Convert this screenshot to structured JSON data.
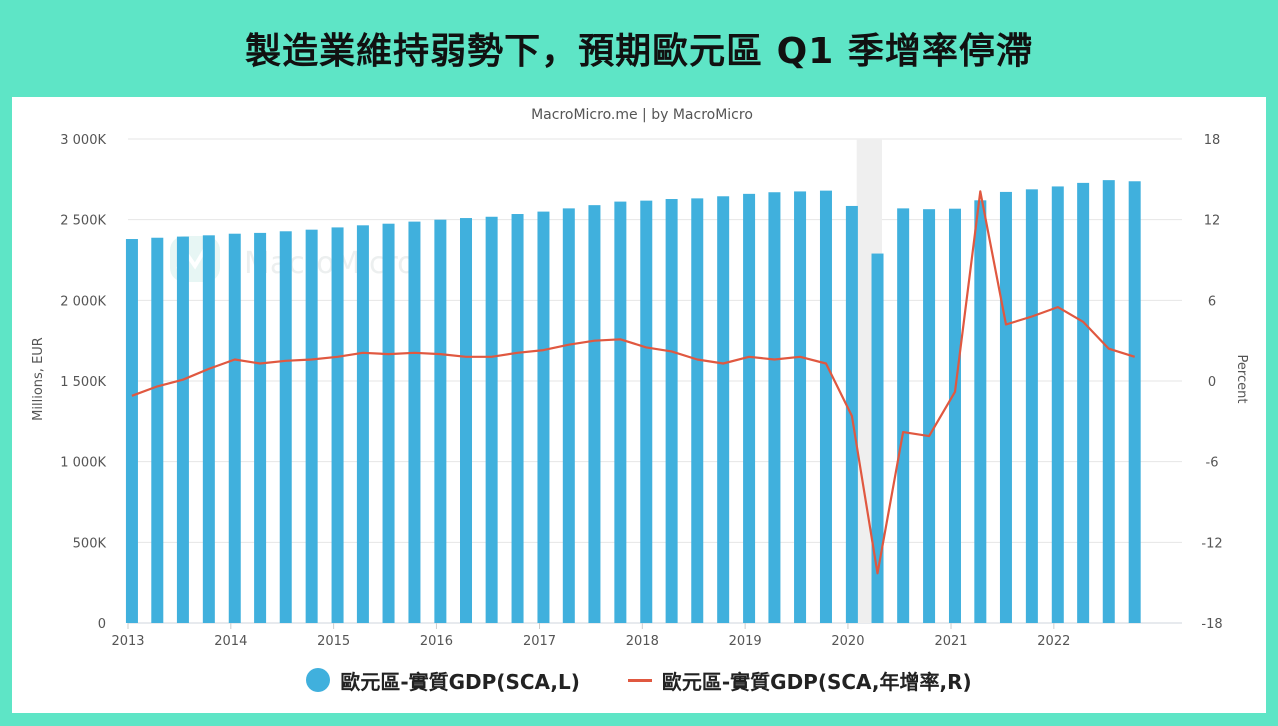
{
  "page": {
    "title": "製造業維持弱勢下，預期歐元區 Q1 季增率停滯"
  },
  "chart_data": {
    "type": "bar",
    "subtitle": "MacroMicro.me | by MacroMicro",
    "watermark": "MacroMicro",
    "left_axis": {
      "label": "Millions, EUR",
      "range": [
        0,
        3000000
      ],
      "ticks": [
        0,
        500000,
        1000000,
        1500000,
        2000000,
        2500000,
        3000000
      ],
      "tick_labels": [
        "0",
        "500K",
        "1 000K",
        "1 500K",
        "2 000K",
        "2 500K",
        "3 000K"
      ]
    },
    "right_axis": {
      "label": "Percent",
      "range": [
        -18,
        18
      ],
      "ticks": [
        -18,
        -12,
        -6,
        0,
        6,
        12,
        18
      ],
      "tick_labels": [
        "-18",
        "-12",
        "-6",
        "0",
        "6",
        "12",
        "18"
      ]
    },
    "x_axis": {
      "range": [
        "2013-01-01",
        "2023-04-01"
      ],
      "tick_labels": [
        "2013",
        "2014",
        "2015",
        "2016",
        "2017",
        "2018",
        "2019",
        "2020",
        "2021",
        "2022"
      ]
    },
    "grid": true,
    "highlight_period": [
      "2020-02-01",
      "2020-05-01"
    ],
    "categories": [
      "2013Q1",
      "2013Q2",
      "2013Q3",
      "2013Q4",
      "2014Q1",
      "2014Q2",
      "2014Q3",
      "2014Q4",
      "2015Q1",
      "2015Q2",
      "2015Q3",
      "2015Q4",
      "2016Q1",
      "2016Q2",
      "2016Q3",
      "2016Q4",
      "2017Q1",
      "2017Q2",
      "2017Q3",
      "2017Q4",
      "2018Q1",
      "2018Q2",
      "2018Q3",
      "2018Q4",
      "2019Q1",
      "2019Q2",
      "2019Q3",
      "2019Q4",
      "2020Q1",
      "2020Q2",
      "2020Q3",
      "2020Q4",
      "2021Q1",
      "2021Q2",
      "2021Q3",
      "2021Q4",
      "2022Q1",
      "2022Q2",
      "2022Q3",
      "2022Q4"
    ],
    "series": [
      {
        "name": "歐元區-實質GDP(SCA,L)",
        "type": "bar",
        "axis": "left",
        "color": "#40b0dd",
        "values": [
          2380000,
          2388000,
          2395000,
          2403000,
          2413000,
          2418000,
          2428000,
          2438000,
          2452000,
          2465000,
          2475000,
          2488000,
          2500000,
          2510000,
          2518000,
          2535000,
          2550000,
          2570000,
          2590000,
          2612000,
          2618000,
          2628000,
          2632000,
          2645000,
          2660000,
          2670000,
          2675000,
          2680000,
          2585000,
          2290000,
          2570000,
          2565000,
          2568000,
          2620000,
          2672000,
          2688000,
          2706000,
          2728000,
          2745000,
          2738000
        ]
      },
      {
        "name": "歐元區-實質GDP(SCA,年增率,R)",
        "type": "line",
        "axis": "right",
        "color": "#e05840",
        "values": [
          -1.1,
          -0.4,
          0.1,
          0.9,
          1.6,
          1.3,
          1.5,
          1.6,
          1.8,
          2.1,
          2.0,
          2.1,
          2.0,
          1.8,
          1.8,
          2.1,
          2.3,
          2.7,
          3.0,
          3.1,
          2.5,
          2.2,
          1.6,
          1.3,
          1.8,
          1.6,
          1.8,
          1.3,
          -2.6,
          -14.3,
          -3.8,
          -4.1,
          -0.8,
          14.1,
          4.2,
          4.8,
          5.5,
          4.4,
          2.4,
          1.8
        ]
      }
    ]
  }
}
